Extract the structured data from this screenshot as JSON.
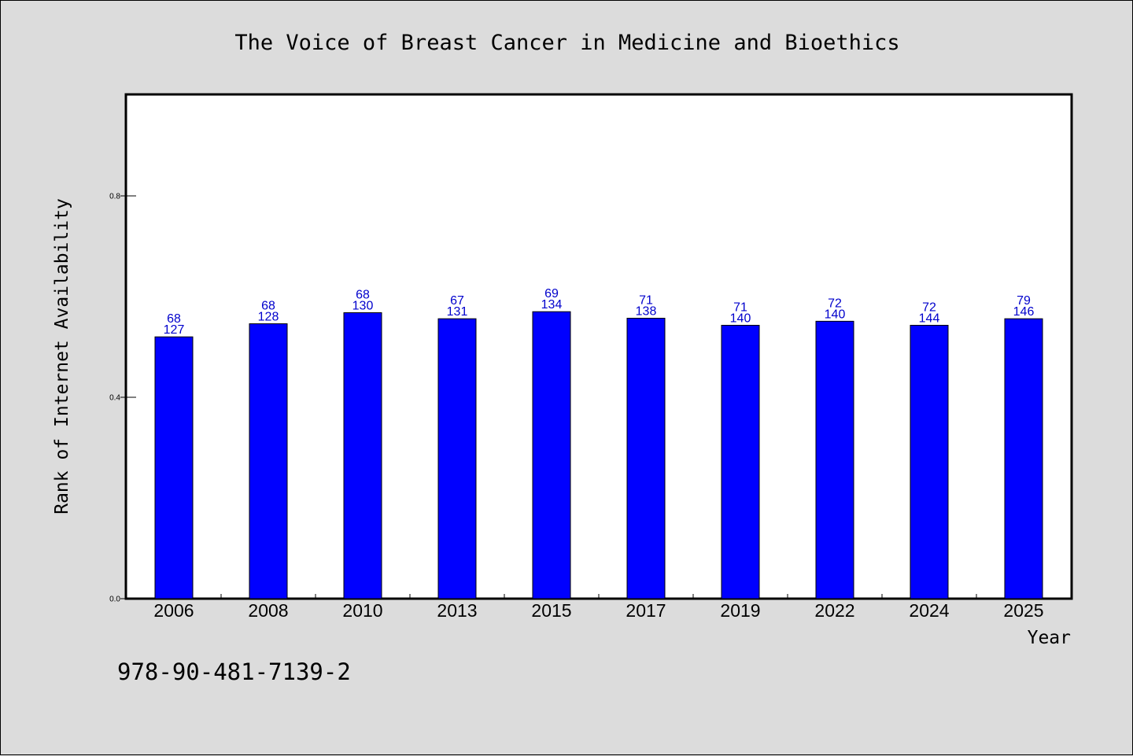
{
  "chart_data": {
    "type": "bar",
    "title": "The Voice of Breast Cancer in Medicine and Bioethics",
    "xlabel": "Year",
    "ylabel": "Rank of Internet Availability",
    "categories": [
      "2006",
      "2008",
      "2010",
      "2013",
      "2015",
      "2017",
      "2019",
      "2022",
      "2024",
      "2025"
    ],
    "values": [
      0.52,
      0.546,
      0.568,
      0.556,
      0.57,
      0.557,
      0.543,
      0.551,
      0.543,
      0.556
    ],
    "labels_top": [
      "68",
      "68",
      "68",
      "67",
      "69",
      "71",
      "71",
      "72",
      "72",
      "79"
    ],
    "labels_bottom": [
      "127",
      "128",
      "130",
      "131",
      "134",
      "138",
      "140",
      "140",
      "144",
      "146"
    ],
    "ylim": [
      0,
      1
    ],
    "yticks": [
      0.0,
      0.4,
      0.8
    ],
    "ytick_labels": [
      "0.0",
      "0.4",
      "0.8"
    ],
    "grid": false,
    "bar_color": "#0000ff",
    "label_color": "#0000cc",
    "background": "#dcdcdc",
    "plot_background": "#ffffff"
  },
  "footer": {
    "isbn": "978-90-481-7139-2"
  }
}
